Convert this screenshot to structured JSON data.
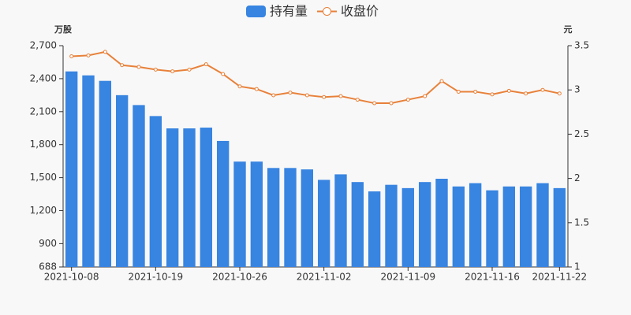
{
  "chart_data": {
    "type": "bar-line",
    "y_unit": "万股",
    "y2_unit": "元",
    "categories": [
      "2021-10-08",
      null,
      null,
      null,
      null,
      "2021-10-19",
      null,
      null,
      null,
      null,
      "2021-10-26",
      null,
      null,
      null,
      null,
      "2021-11-02",
      null,
      null,
      null,
      null,
      "2021-11-09",
      null,
      null,
      null,
      null,
      "2021-11-16",
      null,
      null,
      null,
      "2021-11-22"
    ],
    "series": [
      {
        "name": "持有量",
        "color": "#3784e1",
        "kind": "bar",
        "values": [
          2466,
          2430,
          2380,
          2250,
          2160,
          2060,
          1948,
          1948,
          1955,
          1834,
          1646,
          1646,
          1588,
          1588,
          1575,
          1480,
          1530,
          1460,
          1375,
          1435,
          1405,
          1460,
          1490,
          1420,
          1450,
          1385,
          1420,
          1420,
          1450,
          1405
        ]
      },
      {
        "name": "收盘价",
        "color": "#e8813a",
        "kind": "line",
        "axis": "y2",
        "values": [
          3.38,
          3.39,
          3.43,
          3.28,
          3.26,
          3.23,
          3.21,
          3.23,
          3.29,
          3.18,
          3.04,
          3.01,
          2.94,
          2.97,
          2.94,
          2.92,
          2.93,
          2.89,
          2.85,
          2.85,
          2.89,
          2.93,
          3.1,
          2.98,
          2.98,
          2.95,
          2.99,
          2.96,
          3.0,
          2.96
        ]
      }
    ],
    "ylim": [
      688,
      2700
    ],
    "yticks": [
      688,
      900,
      {
        "value": 1200,
        "label": "1,200"
      },
      {
        "value": 1500,
        "label": "1,500"
      },
      {
        "value": 1800,
        "label": "1,800"
      },
      {
        "value": 2100,
        "label": "2,100"
      },
      {
        "value": 2400,
        "label": "2,400"
      },
      {
        "value": 2700,
        "label": "2,700"
      }
    ],
    "y2lim": [
      1,
      3.5
    ],
    "y2ticks": [
      1,
      1.5,
      2,
      2.5,
      3,
      3.5
    ]
  }
}
